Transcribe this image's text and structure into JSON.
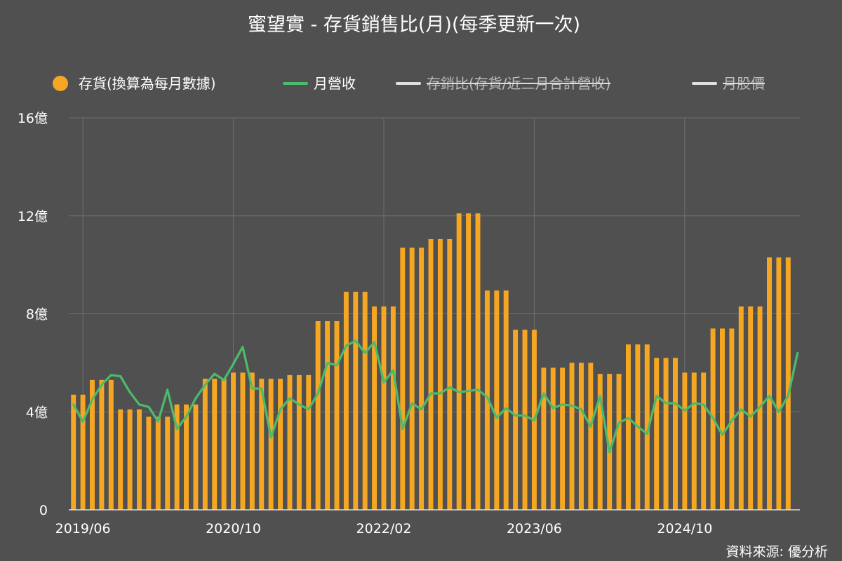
{
  "chart_data": {
    "type": "bar",
    "title": "蜜望實 - 存貨銷售比(月)(每季更新一次)",
    "source": "資料來源: 優分析",
    "legend": [
      {
        "label": "存貨(換算為每月數據)",
        "marker": "circle",
        "color": "#f5a623",
        "active": true
      },
      {
        "label": "月營收",
        "marker": "line",
        "color": "#4cbb6c",
        "active": true
      },
      {
        "label": "存銷比(存貨/近三月合計營收)",
        "marker": "line",
        "color": "#e0e0e0",
        "active": false
      },
      {
        "label": "月股價",
        "marker": "line",
        "color": "#e0e0e0",
        "active": false
      }
    ],
    "legend_position": "top",
    "grid": true,
    "y_ticks": [
      "0",
      "4億",
      "8億",
      "12億",
      "16億"
    ],
    "ylim": [
      0,
      16
    ],
    "y_unit": "億",
    "x_ticks": [
      "2019/06",
      "2020/10",
      "2022/02",
      "2023/06",
      "2024/10"
    ],
    "x_tick_indices": [
      1,
      17,
      33,
      49,
      65
    ],
    "colors": {
      "bar": "#f5a623",
      "line": "#4cbb6c",
      "background": "#505050"
    },
    "series": [
      {
        "name": "存貨(換算為每月數據)",
        "type": "bar",
        "values": [
          4.7,
          4.7,
          5.3,
          5.3,
          5.3,
          4.1,
          4.1,
          4.1,
          3.8,
          3.8,
          3.8,
          4.3,
          4.3,
          4.3,
          5.35,
          5.35,
          5.35,
          5.6,
          5.6,
          5.6,
          5.35,
          5.35,
          5.35,
          5.5,
          5.5,
          5.5,
          7.7,
          7.7,
          7.7,
          8.9,
          8.9,
          8.9,
          8.3,
          8.3,
          8.3,
          10.7,
          10.7,
          10.7,
          11.05,
          11.05,
          11.05,
          12.1,
          12.1,
          12.1,
          8.95,
          8.95,
          8.95,
          7.35,
          7.35,
          7.35,
          5.8,
          5.8,
          5.8,
          6.0,
          6.0,
          6.0,
          5.55,
          5.55,
          5.55,
          6.75,
          6.75,
          6.75,
          6.2,
          6.2,
          6.2,
          5.6,
          5.6,
          5.6,
          7.4,
          7.4,
          7.4,
          8.3,
          8.3,
          8.3,
          10.3,
          10.3,
          10.3
        ]
      },
      {
        "name": "月營收",
        "type": "line",
        "values": [
          4.3,
          3.6,
          4.5,
          5.1,
          5.5,
          5.45,
          4.8,
          4.3,
          4.2,
          3.6,
          4.9,
          3.3,
          3.8,
          4.55,
          5.1,
          5.55,
          5.3,
          5.95,
          6.65,
          4.95,
          4.95,
          2.95,
          4.1,
          4.55,
          4.3,
          4.1,
          4.75,
          6.0,
          5.9,
          6.7,
          6.9,
          6.4,
          6.85,
          5.2,
          5.7,
          3.3,
          4.35,
          4.1,
          4.75,
          4.75,
          5.0,
          4.8,
          4.85,
          4.9,
          4.6,
          3.75,
          4.15,
          3.85,
          3.85,
          3.65,
          4.75,
          4.15,
          4.3,
          4.25,
          4.1,
          3.4,
          4.65,
          2.35,
          3.55,
          3.75,
          3.4,
          3.1,
          4.65,
          4.35,
          4.35,
          4.05,
          4.35,
          4.3,
          3.75,
          3.05,
          3.65,
          4.1,
          3.8,
          4.2,
          4.65,
          4.0,
          4.65,
          6.4
        ]
      }
    ]
  }
}
